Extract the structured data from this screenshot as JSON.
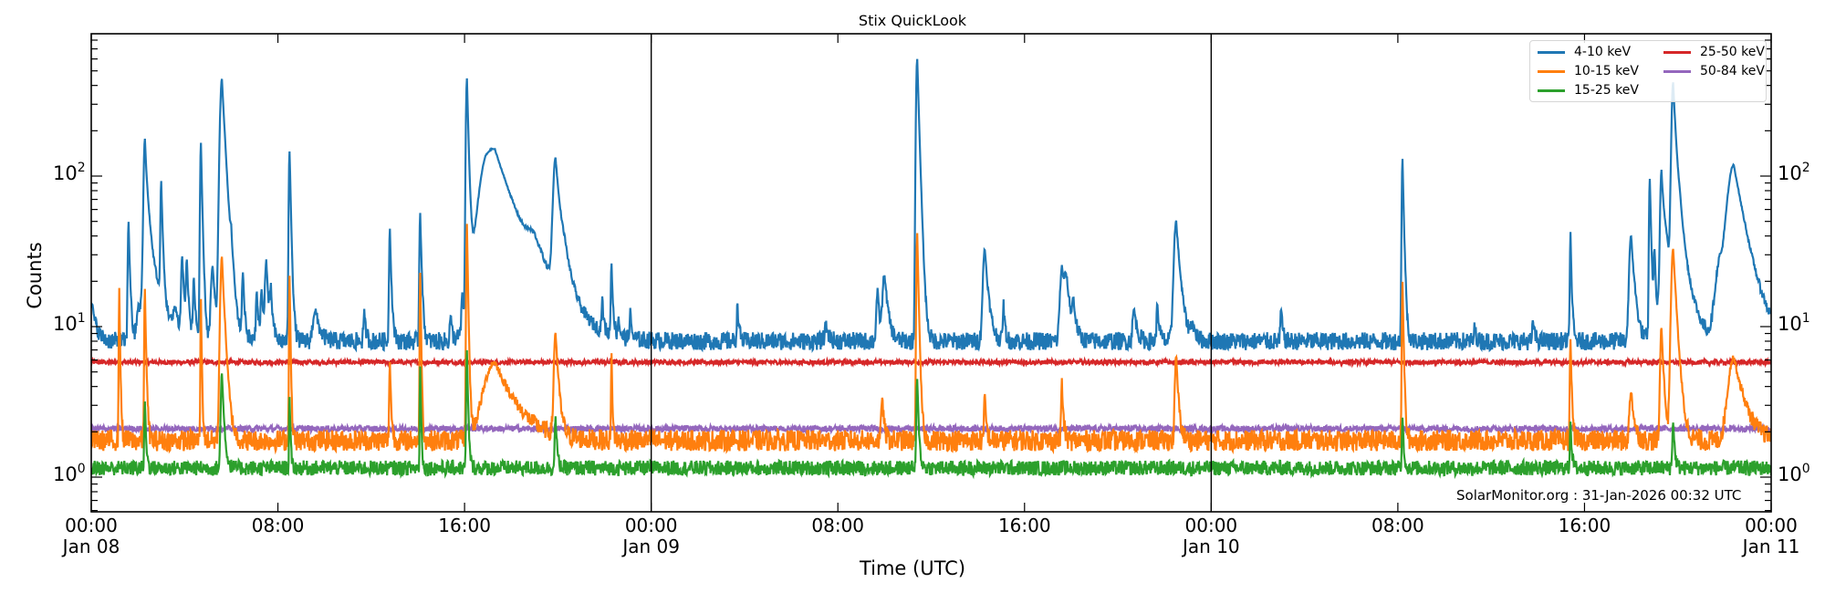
{
  "title": "Stix QuickLook",
  "xlabel": "Time (UTC)",
  "ylabel": "Counts",
  "watermark": "SolarMonitor.org : 31-Jan-2026 00:32 UTC",
  "x_ticks": [
    {
      "hour": 0,
      "time": "00:00",
      "date": "Jan 08"
    },
    {
      "hour": 8,
      "time": "08:00",
      "date": ""
    },
    {
      "hour": 16,
      "time": "16:00",
      "date": ""
    },
    {
      "hour": 24,
      "time": "00:00",
      "date": "Jan 09"
    },
    {
      "hour": 32,
      "time": "08:00",
      "date": ""
    },
    {
      "hour": 40,
      "time": "16:00",
      "date": ""
    },
    {
      "hour": 48,
      "time": "00:00",
      "date": "Jan 10"
    },
    {
      "hour": 56,
      "time": "08:00",
      "date": ""
    },
    {
      "hour": 64,
      "time": "16:00",
      "date": ""
    },
    {
      "hour": 72,
      "time": "00:00",
      "date": "Jan 11"
    }
  ],
  "y_ticks": [
    {
      "base": "10",
      "exp": "0",
      "value": 1
    },
    {
      "base": "10",
      "exp": "1",
      "value": 10
    },
    {
      "base": "10",
      "exp": "2",
      "value": 100
    }
  ],
  "legend": [
    {
      "label": "4-10 keV",
      "color": "#1f77b4"
    },
    {
      "label": "10-15 keV",
      "color": "#ff7f0e"
    },
    {
      "label": "15-25 keV",
      "color": "#2ca02c"
    },
    {
      "label": "25-50 keV",
      "color": "#d62728"
    },
    {
      "label": "50-84 keV",
      "color": "#9467bd"
    }
  ],
  "chart_data": {
    "type": "line",
    "title": "Stix QuickLook",
    "xlabel": "Time (UTC)",
    "ylabel": "Counts",
    "yscale": "log",
    "ylim": [
      0.6,
      850
    ],
    "xlim_hours": [
      0,
      72
    ],
    "x_range_labels": [
      "Jan 08 00:00",
      "Jan 11 00:00"
    ],
    "day_separators_hours": [
      24,
      48
    ],
    "legend_position": "upper right",
    "grid": false,
    "series": [
      {
        "name": "4-10 keV",
        "color": "#1f77b4",
        "baseline": 8,
        "noise": 0.06,
        "peaks": [
          {
            "hour": 0.0,
            "value": 15,
            "width": 0.15
          },
          {
            "hour": 1.6,
            "value": 50,
            "width": 0.05
          },
          {
            "hour": 2.0,
            "value": 12,
            "width": 0.08
          },
          {
            "hour": 2.3,
            "value": 160,
            "width": 0.08
          },
          {
            "hour": 2.5,
            "value": 35,
            "width": 0.35
          },
          {
            "hour": 3.0,
            "value": 85,
            "width": 0.05
          },
          {
            "hour": 3.6,
            "value": 12,
            "width": 0.1
          },
          {
            "hour": 3.9,
            "value": 28,
            "width": 0.07
          },
          {
            "hour": 4.1,
            "value": 25,
            "width": 0.06
          },
          {
            "hour": 4.4,
            "value": 20,
            "width": 0.06
          },
          {
            "hour": 4.7,
            "value": 165,
            "width": 0.05
          },
          {
            "hour": 5.2,
            "value": 25,
            "width": 0.1
          },
          {
            "hour": 5.6,
            "value": 440,
            "width": 0.12
          },
          {
            "hour": 6.0,
            "value": 20,
            "width": 0.06
          },
          {
            "hour": 6.5,
            "value": 22,
            "width": 0.06
          },
          {
            "hour": 7.1,
            "value": 17,
            "width": 0.06
          },
          {
            "hour": 7.3,
            "value": 17,
            "width": 0.06
          },
          {
            "hour": 7.5,
            "value": 27,
            "width": 0.08
          },
          {
            "hour": 7.7,
            "value": 16,
            "width": 0.06
          },
          {
            "hour": 8.5,
            "value": 145,
            "width": 0.05
          },
          {
            "hour": 9.6,
            "value": 13,
            "width": 0.15
          },
          {
            "hour": 11.7,
            "value": 12,
            "width": 0.06
          },
          {
            "hour": 12.8,
            "value": 45,
            "width": 0.05
          },
          {
            "hour": 14.1,
            "value": 57,
            "width": 0.05
          },
          {
            "hour": 15.4,
            "value": 12,
            "width": 0.05
          },
          {
            "hour": 15.9,
            "value": 14,
            "width": 0.05
          },
          {
            "hour": 16.1,
            "value": 440,
            "width": 0.06
          },
          {
            "hour": 16.9,
            "value": 50,
            "width": 0.45
          },
          {
            "hour": 17.3,
            "value": 130,
            "width": 0.8
          },
          {
            "hour": 19.0,
            "value": 20,
            "width": 0.5
          },
          {
            "hour": 19.9,
            "value": 120,
            "width": 0.15
          },
          {
            "hour": 20.3,
            "value": 20,
            "width": 0.35
          },
          {
            "hour": 21.9,
            "value": 14,
            "width": 0.05
          },
          {
            "hour": 22.3,
            "value": 25,
            "width": 0.05
          },
          {
            "hour": 22.6,
            "value": 11,
            "width": 0.05
          },
          {
            "hour": 23.1,
            "value": 12,
            "width": 0.05
          },
          {
            "hour": 27.7,
            "value": 14,
            "width": 0.05
          },
          {
            "hour": 31.5,
            "value": 10,
            "width": 0.1
          },
          {
            "hour": 33.7,
            "value": 17,
            "width": 0.08
          },
          {
            "hour": 34.0,
            "value": 22,
            "width": 0.12
          },
          {
            "hour": 35.4,
            "value": 600,
            "width": 0.07
          },
          {
            "hour": 38.3,
            "value": 33,
            "width": 0.12
          },
          {
            "hour": 39.1,
            "value": 14,
            "width": 0.05
          },
          {
            "hour": 41.6,
            "value": 24,
            "width": 0.12
          },
          {
            "hour": 41.8,
            "value": 18,
            "width": 0.15
          },
          {
            "hour": 42.1,
            "value": 13,
            "width": 0.08
          },
          {
            "hour": 44.7,
            "value": 13,
            "width": 0.1
          },
          {
            "hour": 45.7,
            "value": 14,
            "width": 0.06
          },
          {
            "hour": 46.5,
            "value": 50,
            "width": 0.14
          },
          {
            "hour": 47.2,
            "value": 10,
            "width": 0.12
          },
          {
            "hour": 51.0,
            "value": 13,
            "width": 0.05
          },
          {
            "hour": 56.2,
            "value": 130,
            "width": 0.05
          },
          {
            "hour": 59.3,
            "value": 10,
            "width": 0.05
          },
          {
            "hour": 61.8,
            "value": 11,
            "width": 0.05
          },
          {
            "hour": 63.4,
            "value": 42,
            "width": 0.04
          },
          {
            "hour": 66.0,
            "value": 40,
            "width": 0.12
          },
          {
            "hour": 66.8,
            "value": 95,
            "width": 0.05
          },
          {
            "hour": 67.0,
            "value": 30,
            "width": 0.05
          },
          {
            "hour": 67.3,
            "value": 95,
            "width": 0.08
          },
          {
            "hour": 67.5,
            "value": 35,
            "width": 0.3
          },
          {
            "hour": 67.8,
            "value": 400,
            "width": 0.1
          },
          {
            "hour": 68.1,
            "value": 40,
            "width": 0.3
          },
          {
            "hour": 70.4,
            "value": 115,
            "width": 0.4
          },
          {
            "hour": 69.8,
            "value": 25,
            "width": 0.3
          }
        ]
      },
      {
        "name": "10-15 keV",
        "color": "#ff7f0e",
        "baseline": 1.75,
        "noise": 0.07,
        "peaks": [
          {
            "hour": 1.2,
            "value": 18,
            "width": 0.03
          },
          {
            "hour": 2.3,
            "value": 18,
            "width": 0.04
          },
          {
            "hour": 4.7,
            "value": 15,
            "width": 0.03
          },
          {
            "hour": 5.6,
            "value": 29,
            "width": 0.1
          },
          {
            "hour": 8.5,
            "value": 22,
            "width": 0.03
          },
          {
            "hour": 12.8,
            "value": 6,
            "width": 0.04
          },
          {
            "hour": 14.1,
            "value": 23,
            "width": 0.03
          },
          {
            "hour": 16.1,
            "value": 48,
            "width": 0.04
          },
          {
            "hour": 17.3,
            "value": 5.8,
            "width": 0.7
          },
          {
            "hour": 19.9,
            "value": 9,
            "width": 0.1
          },
          {
            "hour": 22.3,
            "value": 6.5,
            "width": 0.03
          },
          {
            "hour": 33.9,
            "value": 3.5,
            "width": 0.06
          },
          {
            "hour": 35.4,
            "value": 42,
            "width": 0.05
          },
          {
            "hour": 38.3,
            "value": 3.5,
            "width": 0.05
          },
          {
            "hour": 41.6,
            "value": 4.3,
            "width": 0.05
          },
          {
            "hour": 46.5,
            "value": 6.3,
            "width": 0.08
          },
          {
            "hour": 56.2,
            "value": 20,
            "width": 0.04
          },
          {
            "hour": 63.4,
            "value": 8.5,
            "width": 0.04
          },
          {
            "hour": 66.0,
            "value": 3.8,
            "width": 0.1
          },
          {
            "hour": 67.3,
            "value": 10,
            "width": 0.08
          },
          {
            "hour": 67.8,
            "value": 33,
            "width": 0.12
          },
          {
            "hour": 70.4,
            "value": 6.3,
            "width": 0.35
          }
        ]
      },
      {
        "name": "15-25 keV",
        "color": "#2ca02c",
        "baseline": 1.15,
        "noise": 0.05,
        "peaks": [
          {
            "hour": 2.3,
            "value": 3.2,
            "width": 0.04
          },
          {
            "hour": 5.6,
            "value": 5,
            "width": 0.07
          },
          {
            "hour": 8.5,
            "value": 3.5,
            "width": 0.03
          },
          {
            "hour": 14.1,
            "value": 5.5,
            "width": 0.03
          },
          {
            "hour": 16.1,
            "value": 7,
            "width": 0.04
          },
          {
            "hour": 19.9,
            "value": 2.5,
            "width": 0.05
          },
          {
            "hour": 35.4,
            "value": 4.5,
            "width": 0.05
          },
          {
            "hour": 56.2,
            "value": 2.6,
            "width": 0.04
          },
          {
            "hour": 63.4,
            "value": 2.4,
            "width": 0.04
          },
          {
            "hour": 67.8,
            "value": 2.4,
            "width": 0.05
          }
        ]
      },
      {
        "name": "25-50 keV",
        "color": "#d62728",
        "baseline": 5.8,
        "noise": 0.015,
        "peaks": []
      },
      {
        "name": "50-84 keV",
        "color": "#9467bd",
        "baseline": 2.1,
        "noise": 0.02,
        "peaks": []
      }
    ]
  }
}
